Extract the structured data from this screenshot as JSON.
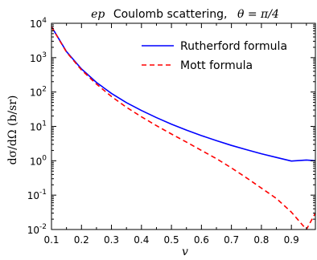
{
  "chart_data": {
    "type": "line",
    "title_prefix": "ep",
    "title_main": "Coulomb scattering,",
    "title_math": "θ = π/4",
    "xlabel": "v",
    "ylabel": "dσ/dΩ  (b/sr)",
    "xlim": [
      0.1,
      0.98
    ],
    "ylim_log10": [
      -2,
      4
    ],
    "y_scale": "log",
    "x_ticks": [
      "0.1",
      "0.2",
      "0.3",
      "0.4",
      "0.5",
      "0.6",
      "0.7",
      "0.8",
      "0.9"
    ],
    "y_ticks": [
      {
        "base": "10",
        "exp": "-2"
      },
      {
        "base": "10",
        "exp": "-1"
      },
      {
        "base": "10",
        "exp": "0"
      },
      {
        "base": "10",
        "exp": "1"
      },
      {
        "base": "10",
        "exp": "2"
      },
      {
        "base": "10",
        "exp": "3"
      },
      {
        "base": "10",
        "exp": "4"
      }
    ],
    "legend_position": "top-right",
    "x": [
      0.1,
      0.15,
      0.2,
      0.25,
      0.3,
      0.35,
      0.4,
      0.45,
      0.5,
      0.55,
      0.6,
      0.65,
      0.7,
      0.75,
      0.8,
      0.85,
      0.9,
      0.95,
      0.98
    ],
    "series": [
      {
        "name": "Rutherford formula",
        "color": "#0000ff",
        "dash": "solid",
        "values": [
          8000,
          1500,
          470,
          190,
          91,
          49,
          29,
          18,
          11.6,
          7.8,
          5.4,
          3.85,
          2.8,
          2.1,
          1.6,
          1.25,
          0.98,
          1.05,
          1.0
        ]
      },
      {
        "name": "Mott formula",
        "color": "#ff0000",
        "dash": "dashed",
        "values": [
          7900,
          1450,
          440,
          170,
          74,
          36,
          19,
          10.5,
          6.0,
          3.5,
          2.0,
          1.15,
          0.62,
          0.32,
          0.16,
          0.08,
          0.032,
          0.0,
          0.03
        ]
      }
    ]
  }
}
